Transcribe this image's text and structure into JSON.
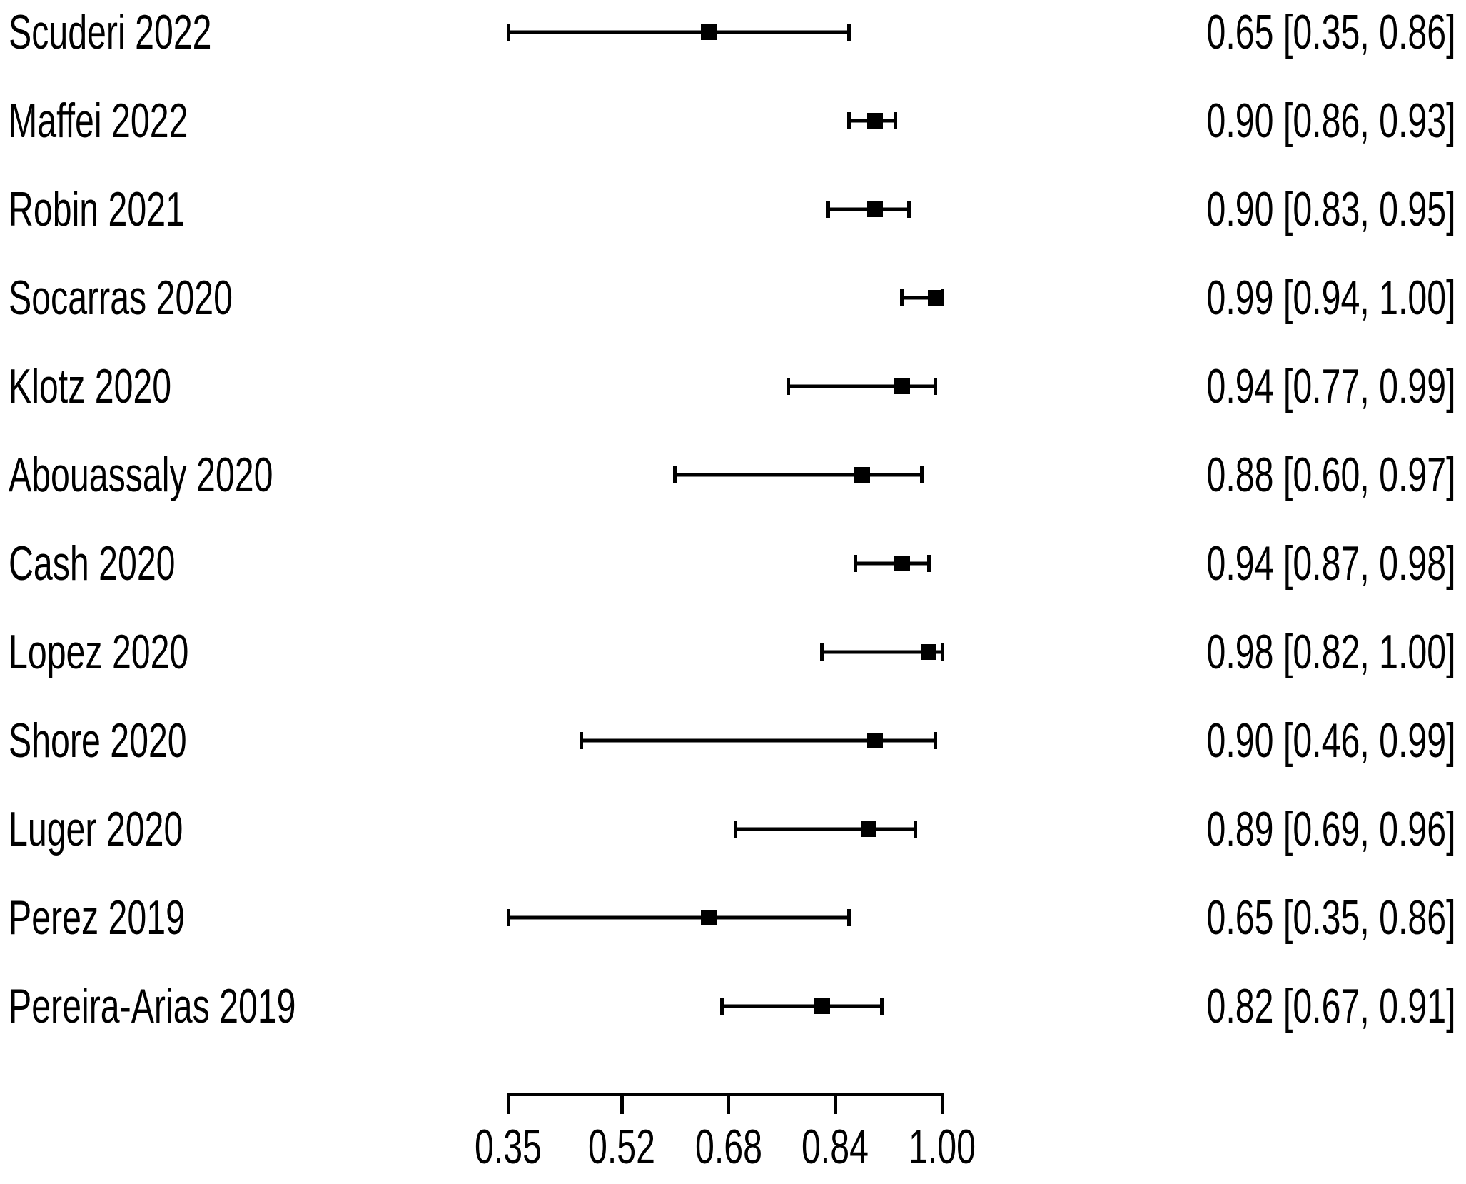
{
  "chart_data": {
    "type": "scatter",
    "variant": "forest-plot",
    "title": "",
    "xlabel": "",
    "ylabel": "",
    "xlim": [
      0.35,
      1.0
    ],
    "grid": false,
    "marker": "filled-square",
    "foreground_color": "#000000",
    "background_color": "#ffffff",
    "x_tick_values": [
      0.35,
      0.52,
      0.68,
      0.84,
      1.0
    ],
    "x_tick_labels": [
      "0.35",
      "0.52",
      "0.68",
      "0.84",
      "1.00"
    ],
    "studies": [
      {
        "label": "Scuderi 2022",
        "estimate": 0.65,
        "ci_low": 0.35,
        "ci_high": 0.86,
        "annotation": "0.65 [0.35, 0.86]"
      },
      {
        "label": "Maffei 2022",
        "estimate": 0.9,
        "ci_low": 0.86,
        "ci_high": 0.93,
        "annotation": "0.90 [0.86, 0.93]"
      },
      {
        "label": "Robin 2021",
        "estimate": 0.9,
        "ci_low": 0.83,
        "ci_high": 0.95,
        "annotation": "0.90 [0.83, 0.95]"
      },
      {
        "label": "Socarras 2020",
        "estimate": 0.99,
        "ci_low": 0.94,
        "ci_high": 1.0,
        "annotation": "0.99 [0.94, 1.00]"
      },
      {
        "label": "Klotz 2020",
        "estimate": 0.94,
        "ci_low": 0.77,
        "ci_high": 0.99,
        "annotation": "0.94 [0.77, 0.99]"
      },
      {
        "label": "Abouassaly 2020",
        "estimate": 0.88,
        "ci_low": 0.6,
        "ci_high": 0.97,
        "annotation": "0.88 [0.60, 0.97]"
      },
      {
        "label": "Cash 2020",
        "estimate": 0.94,
        "ci_low": 0.87,
        "ci_high": 0.98,
        "annotation": "0.94 [0.87, 0.98]"
      },
      {
        "label": "Lopez 2020",
        "estimate": 0.98,
        "ci_low": 0.82,
        "ci_high": 1.0,
        "annotation": "0.98 [0.82, 1.00]"
      },
      {
        "label": "Shore 2020",
        "estimate": 0.9,
        "ci_low": 0.46,
        "ci_high": 0.99,
        "annotation": "0.90 [0.46, 0.99]"
      },
      {
        "label": "Luger 2020",
        "estimate": 0.89,
        "ci_low": 0.69,
        "ci_high": 0.96,
        "annotation": "0.89 [0.69, 0.96]"
      },
      {
        "label": "Perez 2019",
        "estimate": 0.65,
        "ci_low": 0.35,
        "ci_high": 0.86,
        "annotation": "0.65 [0.35, 0.86]"
      },
      {
        "label": "Pereira-Arias 2019",
        "estimate": 0.82,
        "ci_low": 0.67,
        "ci_high": 0.91,
        "annotation": "0.82 [0.67, 0.91]"
      }
    ]
  }
}
